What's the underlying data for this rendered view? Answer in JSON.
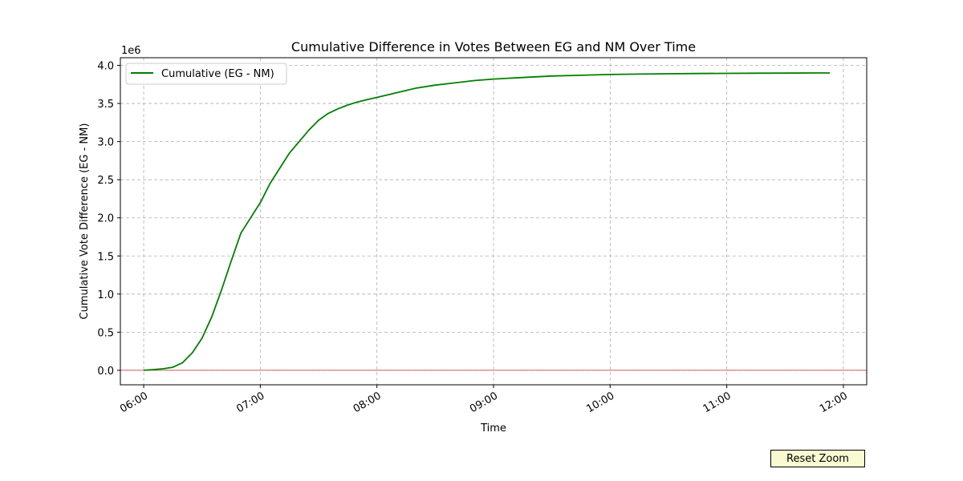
{
  "chart_data": {
    "type": "line",
    "title": "Cumulative Difference in Votes Between EG and NM Over Time",
    "xlabel": "Time",
    "ylabel": "Cumulative Vote Difference (EG - NM)",
    "y_multiplier_label": "1e6",
    "x_ticks": [
      "06:00",
      "07:00",
      "08:00",
      "09:00",
      "10:00",
      "11:00",
      "12:00"
    ],
    "y_ticks": [
      "0.0",
      "0.5",
      "1.0",
      "1.5",
      "2.0",
      "2.5",
      "3.0",
      "3.5",
      "4.0"
    ],
    "xlim": [
      "05:48",
      "12:12"
    ],
    "ylim": [
      -0.19,
      4.1
    ],
    "grid": true,
    "legend_position": "top-left",
    "reference_line": {
      "y": 0,
      "color": "#cd5c5c"
    },
    "series": [
      {
        "name": "Cumulative (EG - NM)",
        "color": "#008000",
        "x": [
          "06:00",
          "06:05",
          "06:10",
          "06:15",
          "06:20",
          "06:25",
          "06:30",
          "06:35",
          "06:40",
          "06:45",
          "06:50",
          "06:55",
          "07:00",
          "07:05",
          "07:10",
          "07:15",
          "07:20",
          "07:25",
          "07:30",
          "07:35",
          "07:40",
          "07:45",
          "07:50",
          "07:55",
          "08:00",
          "08:10",
          "08:20",
          "08:30",
          "08:40",
          "08:50",
          "09:00",
          "09:15",
          "09:30",
          "09:45",
          "10:00",
          "10:15",
          "10:30",
          "10:45",
          "11:00",
          "11:15",
          "11:30",
          "11:45",
          "11:53"
        ],
        "values": [
          0.0,
          0.01,
          0.02,
          0.04,
          0.1,
          0.23,
          0.42,
          0.7,
          1.05,
          1.43,
          1.8,
          2.0,
          2.2,
          2.45,
          2.65,
          2.85,
          3.0,
          3.15,
          3.28,
          3.37,
          3.43,
          3.48,
          3.52,
          3.55,
          3.58,
          3.64,
          3.7,
          3.74,
          3.77,
          3.8,
          3.82,
          3.84,
          3.86,
          3.87,
          3.88,
          3.885,
          3.89,
          3.893,
          3.895,
          3.897,
          3.898,
          3.9,
          3.9
        ]
      }
    ]
  },
  "controls": {
    "reset_zoom_label": "Reset Zoom"
  }
}
